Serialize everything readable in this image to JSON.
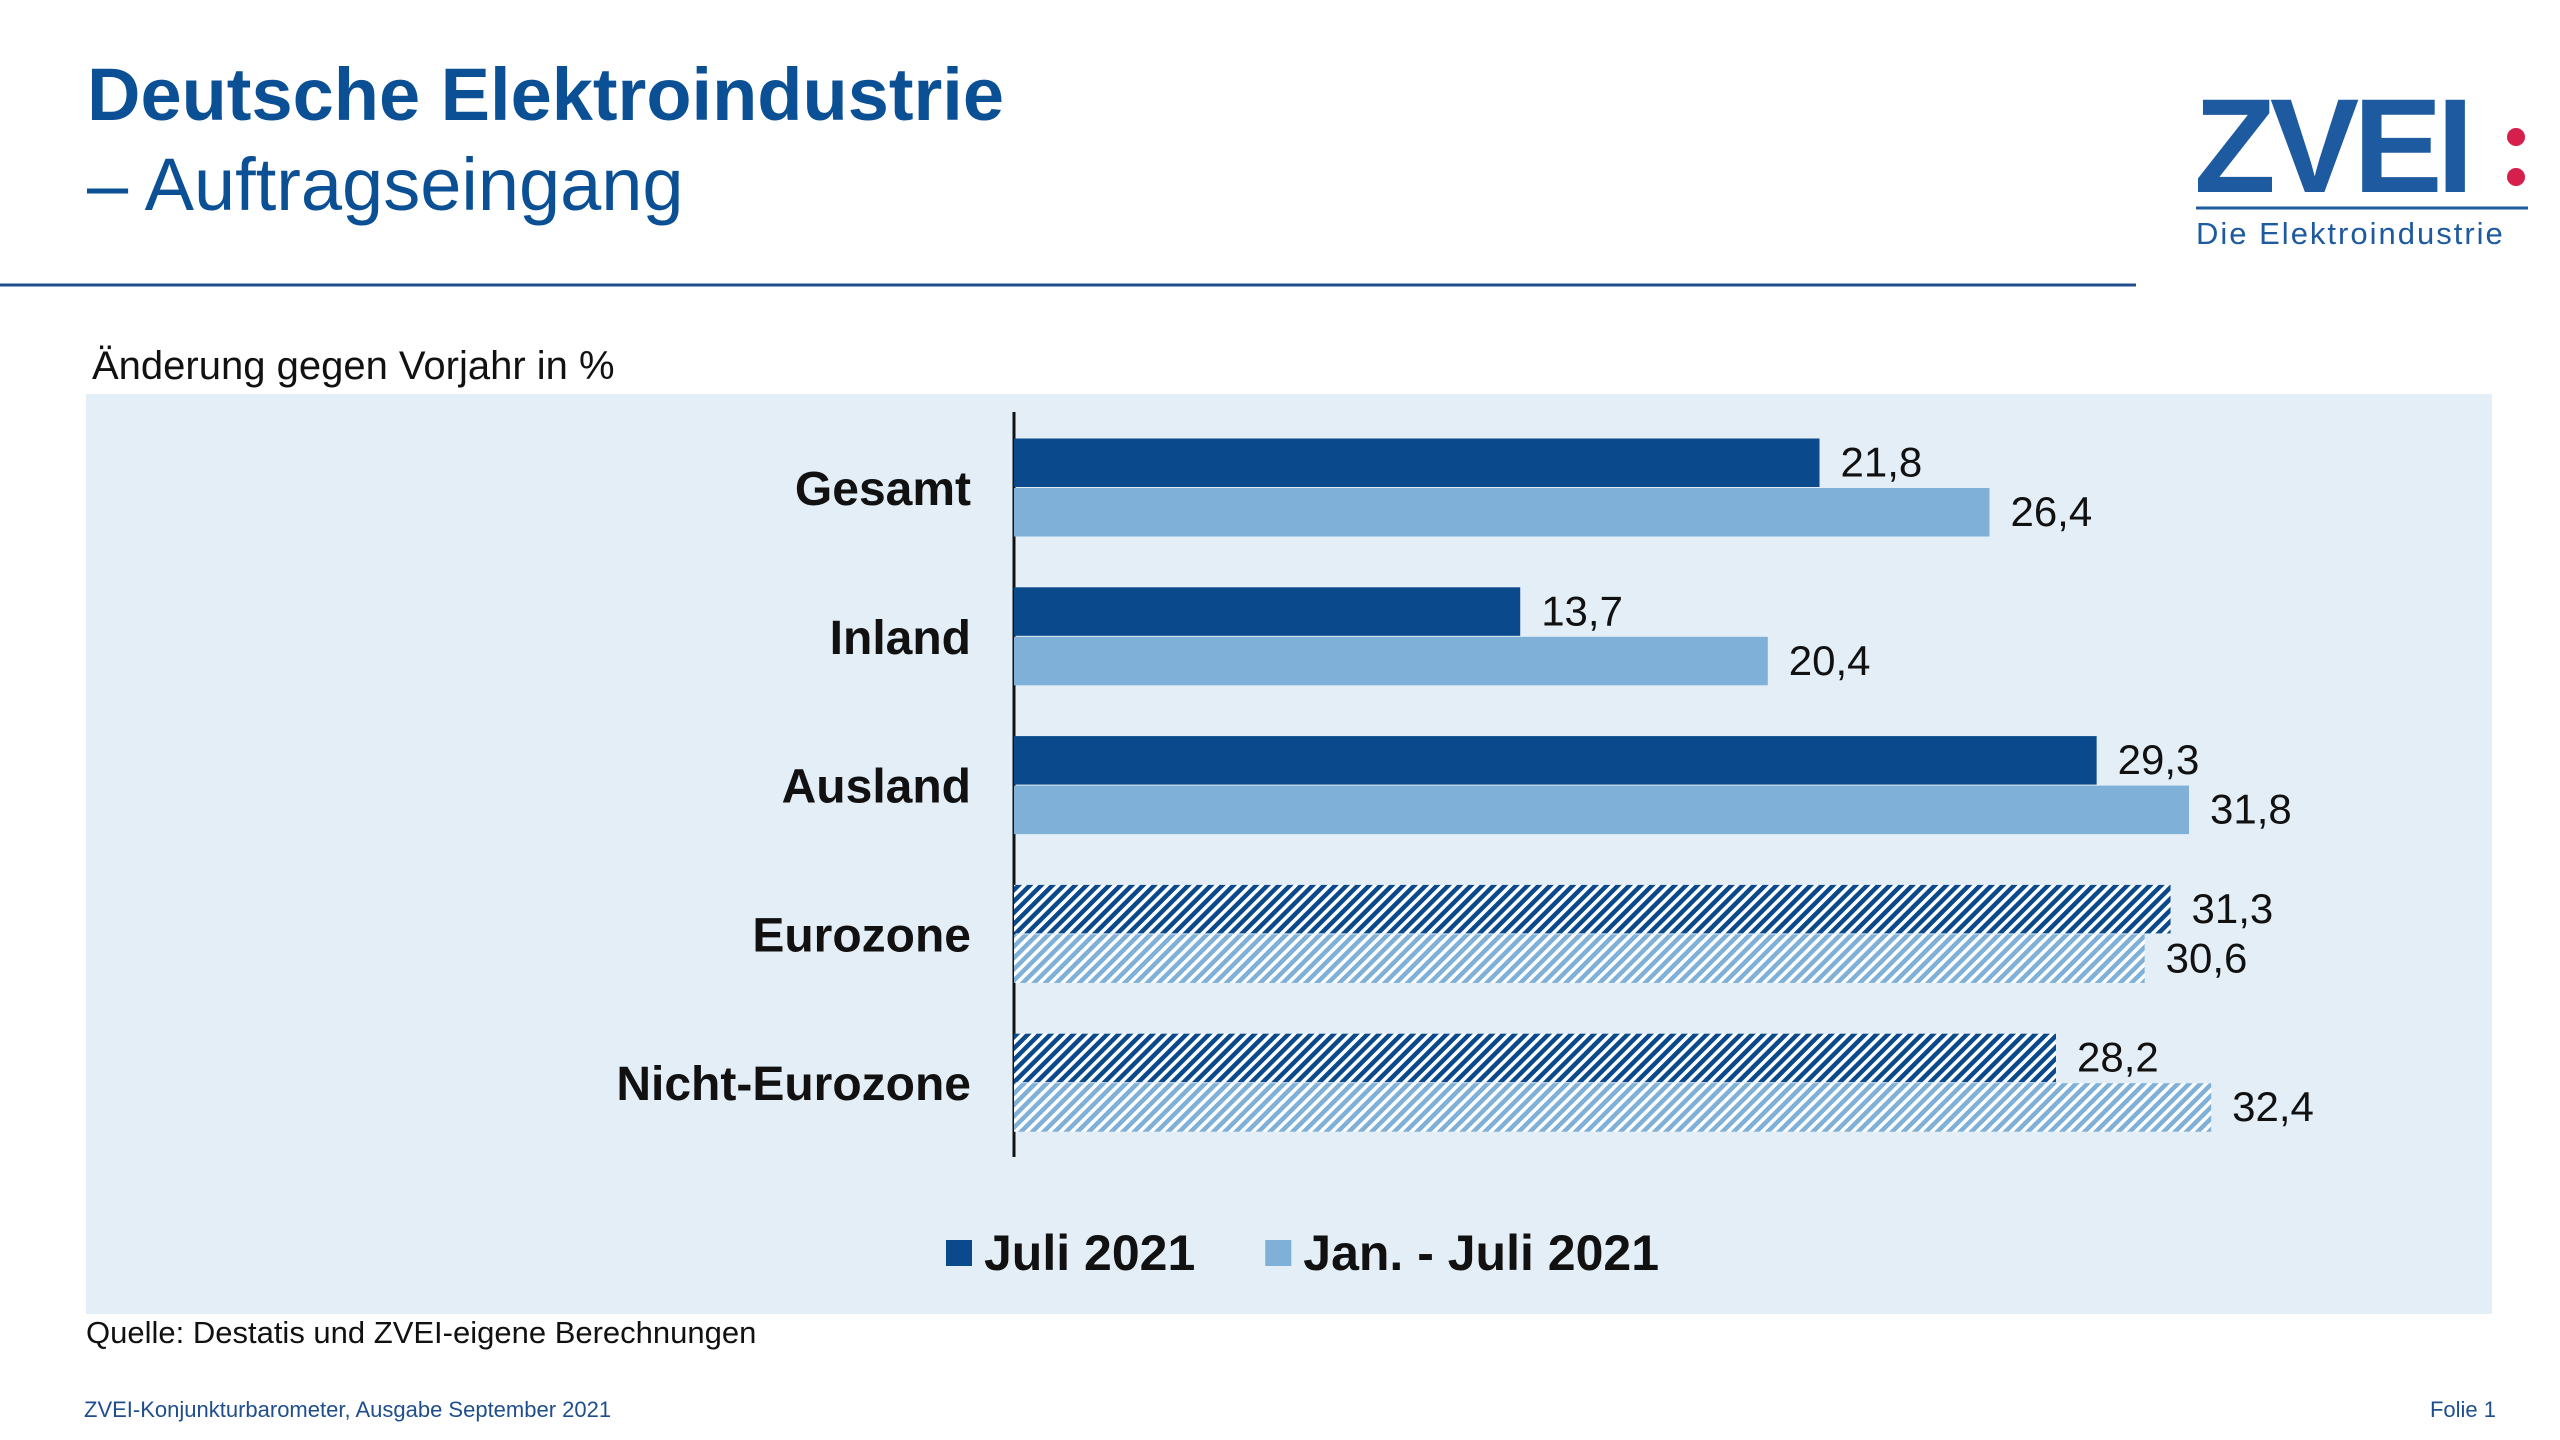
{
  "header": {
    "title": "Deutsche Elektroindustrie",
    "title2": "– Auftragseingang"
  },
  "logo": {
    "text": "ZVEI",
    "tagline": "Die Elektroindustrie"
  },
  "chart_data": {
    "type": "bar",
    "orientation": "horizontal",
    "subtitle": "Änderung gegen Vorjahr in %",
    "categories": [
      "Gesamt",
      "Inland",
      "Ausland",
      "Eurozone",
      "Nicht-Eurozone"
    ],
    "hatched": [
      false,
      false,
      false,
      true,
      true
    ],
    "series": [
      {
        "name": "Juli 2021",
        "color": "#0a4a8c",
        "values": [
          21.8,
          13.7,
          29.3,
          31.3,
          28.2
        ],
        "value_labels": [
          "21,8",
          "13,7",
          "29,3",
          "31,3",
          "28,2"
        ]
      },
      {
        "name": "Jan. - Juli 2021",
        "color": "#7fb0d7",
        "values": [
          26.4,
          20.4,
          31.8,
          30.6,
          32.4
        ],
        "value_labels": [
          "26,4",
          "20,4",
          "31,8",
          "30,6",
          "32,4"
        ]
      }
    ],
    "xlim": [
      0,
      40
    ],
    "legend": "bottom"
  },
  "source": "Quelle: Destatis und ZVEI-eigene Berechnungen",
  "footer": {
    "left": "ZVEI-Konjunkturbarometer, Ausgabe September 2021",
    "right": "Folie 1"
  }
}
